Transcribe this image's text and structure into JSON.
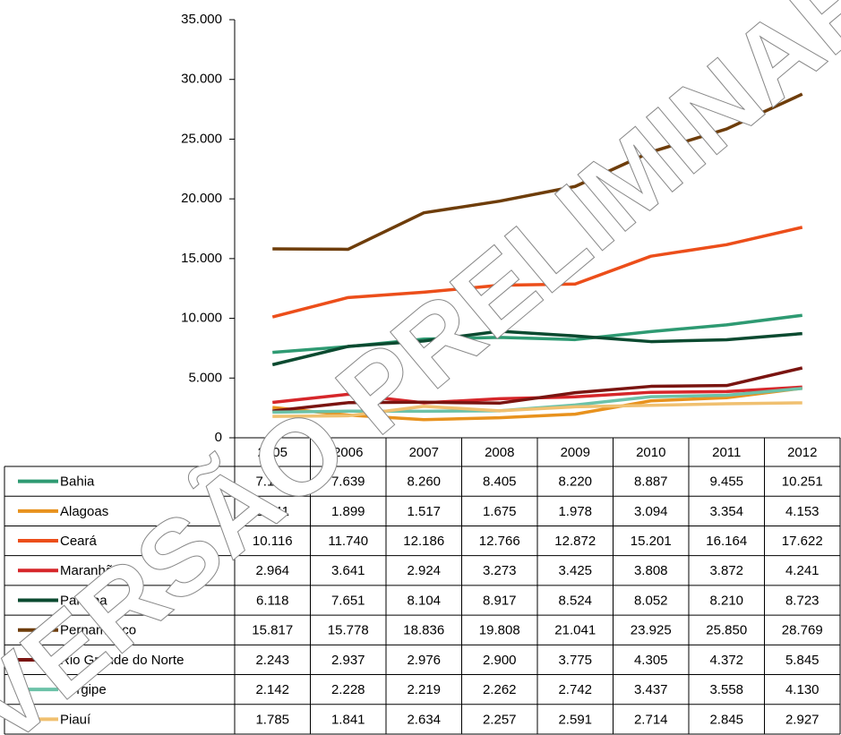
{
  "chart_data": {
    "type": "line",
    "categories": [
      "2005",
      "2006",
      "2007",
      "2008",
      "2009",
      "2010",
      "2011",
      "2012"
    ],
    "ylim": [
      0,
      35000
    ],
    "yticks": [
      0,
      {
        "value": 5000,
        "label": "5.000"
      },
      {
        "value": 10000,
        "label": "10.000"
      },
      {
        "value": 15000,
        "label": "15.000"
      },
      {
        "value": 20000,
        "label": "20.000"
      },
      {
        "value": 25000,
        "label": "25.000"
      },
      {
        "value": 30000,
        "label": "30.000"
      },
      {
        "value": 35000,
        "label": "35.000"
      }
    ],
    "watermark": "VERSÃO PRELIMINAR",
    "series": [
      {
        "name": "Bahia",
        "color": "#2e9a72",
        "values": [
          7144,
          7639,
          8260,
          8405,
          8220,
          8887,
          9455,
          10251
        ],
        "value_labels": [
          "7.144",
          "7.639",
          "8.260",
          "8.405",
          "8.220",
          "8.887",
          "9.455",
          "10.251"
        ]
      },
      {
        "name": "Alagoas",
        "color": "#e8921e",
        "values": [
          2541,
          1899,
          1517,
          1675,
          1978,
          3094,
          3354,
          4153
        ],
        "value_labels": [
          "2.541",
          "1.899",
          "1.517",
          "1.675",
          "1.978",
          "3.094",
          "3.354",
          "4.153"
        ]
      },
      {
        "name": "Ceará",
        "color": "#ec4e1a",
        "values": [
          10116,
          11740,
          12186,
          12766,
          12872,
          15201,
          16164,
          17622
        ],
        "value_labels": [
          "10.116",
          "11.740",
          "12.186",
          "12.766",
          "12.872",
          "15.201",
          "16.164",
          "17.622"
        ]
      },
      {
        "name": "Maranhão",
        "color": "#d6262a",
        "values": [
          2964,
          3641,
          2924,
          3273,
          3425,
          3808,
          3872,
          4241
        ],
        "value_labels": [
          "2.964",
          "3.641",
          "2.924",
          "3.273",
          "3.425",
          "3.808",
          "3.872",
          "4.241"
        ]
      },
      {
        "name": "Paraíba",
        "color": "#0b4a30",
        "values": [
          6118,
          7651,
          8104,
          8917,
          8524,
          8052,
          8210,
          8723
        ],
        "value_labels": [
          "6.118",
          "7.651",
          "8.104",
          "8.917",
          "8.524",
          "8.052",
          "8.210",
          "8.723"
        ]
      },
      {
        "name": "Pernambuco",
        "color": "#6e3d0a",
        "values": [
          15817,
          15778,
          18836,
          19808,
          21041,
          23925,
          25850,
          28769
        ],
        "value_labels": [
          "15.817",
          "15.778",
          "18.836",
          "19.808",
          "21.041",
          "23.925",
          "25.850",
          "28.769"
        ]
      },
      {
        "name": "Rio Grande do Norte",
        "color": "#7a1410",
        "values": [
          2243,
          2937,
          2976,
          2900,
          3775,
          4305,
          4372,
          5845
        ],
        "value_labels": [
          "2.243",
          "2.937",
          "2.976",
          "2.900",
          "3.775",
          "4.305",
          "4.372",
          "5.845"
        ]
      },
      {
        "name": "Sergipe",
        "color": "#6cc2a8",
        "values": [
          2142,
          2228,
          2219,
          2262,
          2742,
          3437,
          3558,
          4130
        ],
        "value_labels": [
          "2.142",
          "2.228",
          "2.219",
          "2.262",
          "2.742",
          "3.437",
          "3.558",
          "4.130"
        ]
      },
      {
        "name": "Piauí",
        "color": "#f0c070",
        "values": [
          1785,
          1841,
          2634,
          2257,
          2591,
          2714,
          2845,
          2927
        ],
        "value_labels": [
          "1.785",
          "1.841",
          "2.634",
          "2.257",
          "2.591",
          "2.714",
          "2.845",
          "2.927"
        ]
      }
    ]
  }
}
